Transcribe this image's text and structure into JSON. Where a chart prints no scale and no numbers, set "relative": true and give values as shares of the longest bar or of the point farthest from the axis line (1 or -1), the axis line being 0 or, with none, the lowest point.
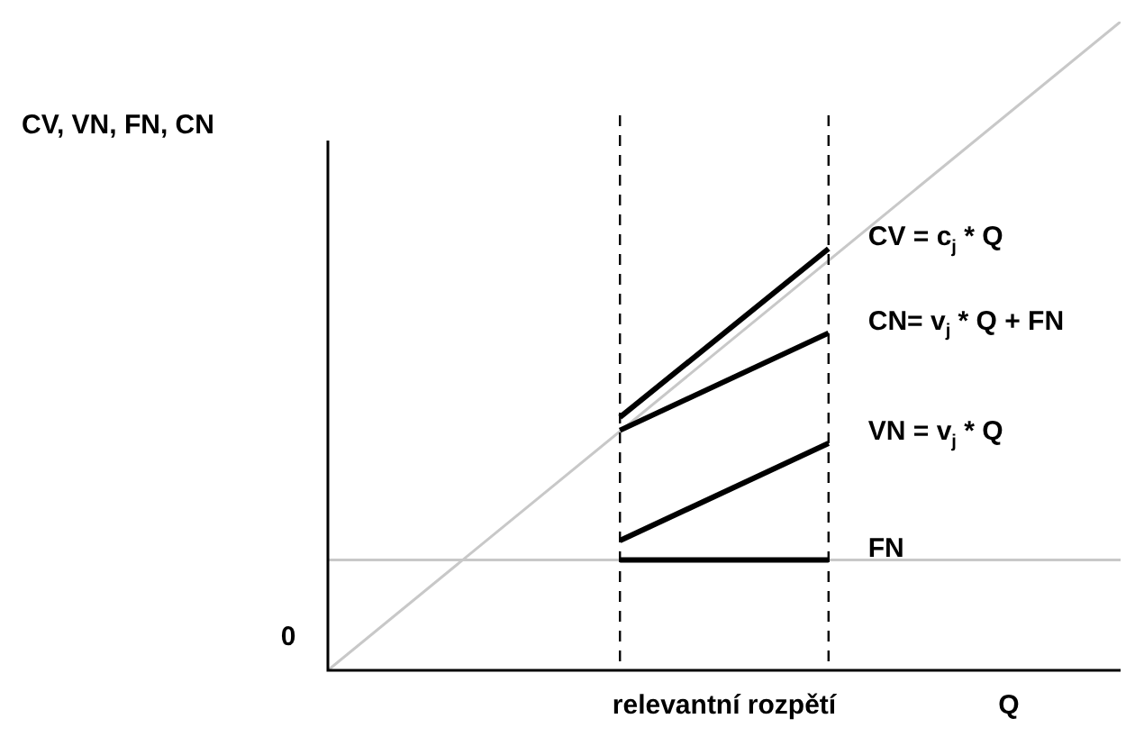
{
  "chart_data": {
    "type": "line",
    "relative": true,
    "ylabel": "CV, VN, FN, CN",
    "xlabel": "Q",
    "legend": false,
    "marker": "none",
    "line_style": "solid",
    "categories": [
      null,
      null,
      null,
      null,
      null,
      null,
      null,
      null,
      null,
      null,
      null,
      null,
      null,
      null,
      null,
      null,
      null,
      null,
      null,
      null
    ],
    "series": [
      {
        "color": "#c8c8c8",
        "values": [
          0,
          null,
          null,
          null,
          null,
          null,
          null,
          null,
          null,
          null,
          null,
          null,
          null,
          null,
          null,
          null,
          null,
          null,
          null,
          1
        ]
      },
      {
        "color": "#c8c8c8",
        "values": [
          0.17,
          null,
          null,
          null,
          null,
          null,
          null,
          null,
          null,
          null,
          null,
          null,
          null,
          null,
          null,
          null,
          null,
          null,
          null,
          0.17
        ]
      },
      {
        "name": "FN",
        "color": "#000000",
        "values": [
          null,
          null,
          null,
          null,
          null,
          null,
          null,
          0.17,
          null,
          null,
          null,
          null,
          0.17,
          null,
          null,
          null,
          null,
          null,
          null,
          null
        ]
      },
      {
        "name": "VN = v$_{j}$ * Q",
        "color": "#000000",
        "values": [
          null,
          null,
          null,
          null,
          null,
          null,
          null,
          0.2,
          null,
          null,
          null,
          null,
          0.35,
          null,
          null,
          null,
          null,
          null,
          null,
          null
        ]
      },
      {
        "name": "CN= v$_{j}$ * Q + FN",
        "color": "#000000",
        "values": [
          null,
          null,
          null,
          null,
          null,
          null,
          null,
          0.37,
          null,
          null,
          null,
          null,
          0.52,
          null,
          null,
          null,
          null,
          null,
          null,
          null
        ]
      },
      {
        "name": "CV = c$_{j}$ * Q",
        "color": "#000000",
        "values": [
          null,
          null,
          null,
          null,
          null,
          null,
          null,
          0.39,
          null,
          null,
          null,
          null,
          0.65,
          null,
          null,
          null,
          null,
          null,
          null,
          null
        ]
      }
    ],
    "annotations": [
      "0",
      "relevantní rozpětí"
    ]
  }
}
